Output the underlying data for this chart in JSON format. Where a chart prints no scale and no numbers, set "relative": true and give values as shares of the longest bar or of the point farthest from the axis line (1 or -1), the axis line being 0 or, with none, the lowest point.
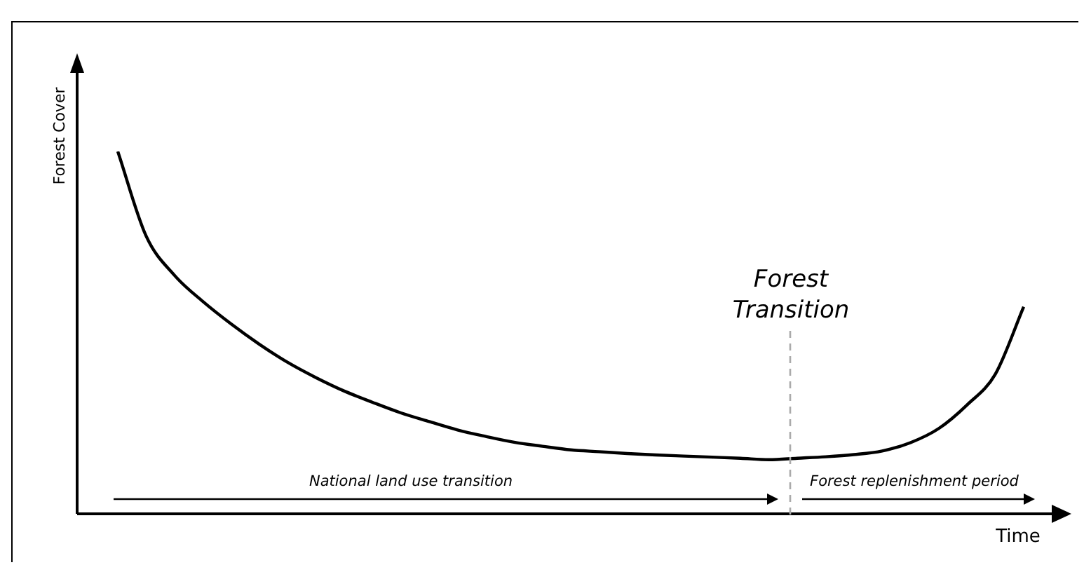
{
  "chart_data": {
    "type": "line",
    "relative": true,
    "xlabel": "Time",
    "ylabel": "Forest Cover",
    "categories": [
      null,
      null,
      null,
      null,
      null,
      null,
      null,
      null,
      null,
      null,
      null,
      null,
      null,
      null,
      null,
      null,
      null,
      null,
      null,
      null,
      null,
      null,
      null,
      null,
      null,
      null,
      null,
      null,
      null,
      null,
      null,
      null,
      null
    ],
    "series": [
      {
        "color": "#000000",
        "values": [
          1.0,
          0.767,
          0.659,
          0.587,
          0.525,
          0.469,
          0.419,
          0.377,
          0.34,
          0.309,
          0.28,
          0.256,
          0.233,
          0.215,
          0.199,
          0.188,
          0.178,
          0.173,
          0.168,
          0.164,
          0.161,
          0.158,
          0.155,
          0.151,
          0.155,
          0.159,
          0.165,
          0.175,
          0.198,
          0.237,
          0.302,
          0.387,
          0.572
        ]
      }
    ],
    "annotations": [
      "Forest Transition",
      "National land use transition",
      "Forest replenishment period"
    ],
    "legend": false,
    "marker": "none",
    "line_style": "solid",
    "tick_labels": false
  }
}
